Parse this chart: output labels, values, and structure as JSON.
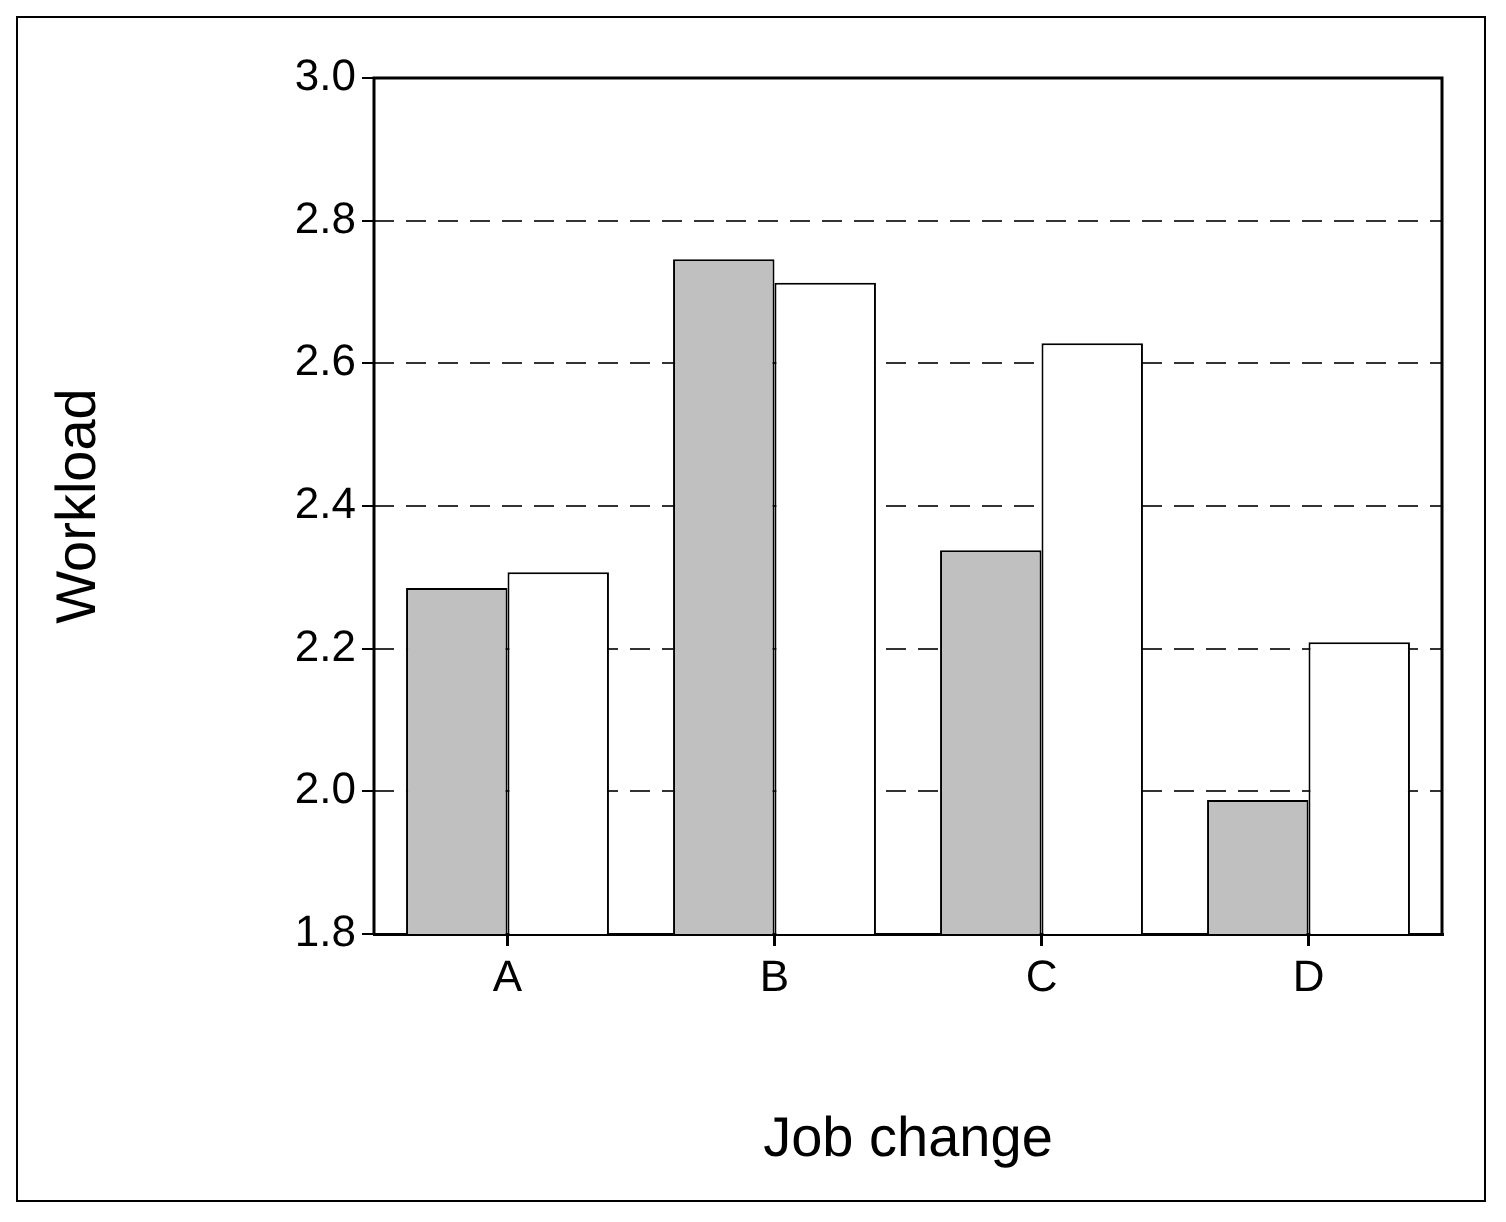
{
  "chart_data": {
    "type": "bar",
    "xlabel": "Job change",
    "ylabel": "Workload",
    "categories": [
      "A",
      "B",
      "C",
      "D"
    ],
    "series": [
      {
        "color": "#c0c0c0",
        "values": [
          2.285,
          2.746,
          2.338,
          1.988
        ]
      },
      {
        "color": "#ffffff",
        "values": [
          2.307,
          2.713,
          2.628,
          2.209
        ]
      }
    ],
    "ylim": [
      1.8,
      3.0
    ],
    "yticks": [
      1.8,
      {
        "value": 2,
        "label": "2.0"
      },
      2.2,
      2.4,
      2.6,
      2.8,
      {
        "value": 3,
        "label": "3.0"
      }
    ],
    "grid": "y",
    "legend": false
  }
}
